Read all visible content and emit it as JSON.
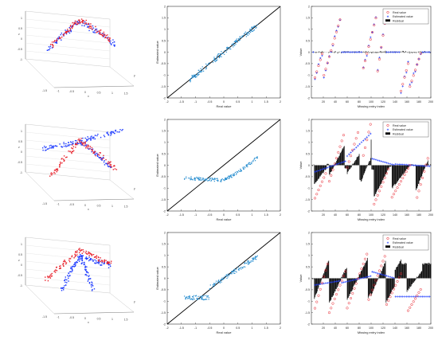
{
  "chart_data": [
    {
      "type": "scatter3d",
      "panel": "row1-3d",
      "xlabel": "x",
      "ylabel": "y",
      "zlabel": "z",
      "xticks": [
        "-1.5",
        "-1",
        "-0.5",
        "0",
        "0.5",
        "1",
        "1.5"
      ],
      "zticks": [
        "-1",
        "-0.5",
        "0",
        "0.5",
        "1"
      ],
      "series": [
        {
          "color": "#1e3cff",
          "marker": "dot",
          "arms": [
            {
              "from": [
                -1.05,
                -0.35
              ],
              "to": [
                0,
                0.75
              ]
            },
            {
              "from": [
                0,
                0.75
              ],
              "to": [
                1.2,
                -0.2
              ]
            }
          ]
        },
        {
          "color": "#e8202a",
          "marker": "dot",
          "arms": [
            {
              "from": [
                -0.95,
                -0.25
              ],
              "to": [
                0,
                0.8
              ]
            },
            {
              "from": [
                0,
                0.8
              ],
              "to": [
                1.05,
                0.0
              ]
            }
          ]
        }
      ]
    },
    {
      "type": "scatter",
      "panel": "row1-scatter",
      "xlabel": "Real value",
      "ylabel": "Estimated value",
      "xlim": [
        -2,
        2
      ],
      "ylim": [
        -2,
        2
      ],
      "xticks": [
        "-2",
        "-1.5",
        "-1",
        "-0.5",
        "0",
        "0.5",
        "1",
        "1.5",
        "2"
      ],
      "yticks": [
        "-2",
        "-1.5",
        "-1",
        "-0.5",
        "0",
        "0.5",
        "1",
        "1.5",
        "2"
      ],
      "identity_line": true,
      "color": "#2a8fd0",
      "trend": {
        "xrange": [
          -1.2,
          1.2
        ],
        "fn": "identity",
        "spread": 0.12
      }
    },
    {
      "type": "line",
      "panel": "row1-series",
      "xlabel": "Missing entry index",
      "ylabel": "Value",
      "xlim": [
        0,
        200
      ],
      "ylim": [
        -2,
        2
      ],
      "xticks": [
        "20",
        "40",
        "60",
        "80",
        "100",
        "120",
        "140",
        "160",
        "180",
        "200"
      ],
      "yticks": [
        "-2",
        "-1.5",
        "-1",
        "-0.5",
        "0",
        "0.5",
        "1",
        "1.5",
        "2"
      ],
      "legend": [
        "Real value",
        "Estimated value",
        "Residual"
      ],
      "legend_position": "top-right",
      "real_segments": [
        [
          5,
          20,
          -1.2,
          0.1
        ],
        [
          20,
          50,
          -1.1,
          1.6
        ],
        [
          85,
          110,
          -0.9,
          1.7
        ],
        [
          110,
          125,
          -1.0,
          1.6
        ],
        [
          150,
          165,
          -1.7,
          -0.2
        ],
        [
          165,
          185,
          -1.5,
          0.1
        ]
      ],
      "residual_scale": 0.25
    },
    {
      "type": "scatter3d",
      "panel": "row2-3d",
      "xlabel": "x",
      "ylabel": "y",
      "zlabel": "z",
      "xticks": [
        "-1.5",
        "-1",
        "-0.5",
        "0",
        "0.5",
        "1",
        "1.5"
      ],
      "zticks": [
        "-1",
        "-0.5",
        "0",
        "0.5",
        "1"
      ],
      "series": [
        {
          "color": "#1e3cff",
          "marker": "dot",
          "arms": [
            {
              "from": [
                -1.2,
                0.15
              ],
              "to": [
                0,
                0.45
              ]
            },
            {
              "from": [
                0,
                0.45
              ],
              "to": [
                1.4,
                0.9
              ]
            },
            {
              "from": [
                0,
                0.45
              ],
              "to": [
                1.0,
                -0.5
              ]
            }
          ]
        },
        {
          "color": "#e8202a",
          "marker": "dot",
          "arms": [
            {
              "from": [
                -0.95,
                -0.9
              ],
              "to": [
                0,
                0.5
              ]
            },
            {
              "from": [
                0,
                0.5
              ],
              "to": [
                1.2,
                -0.6
              ]
            }
          ]
        }
      ]
    },
    {
      "type": "scatter",
      "panel": "row2-scatter",
      "xlabel": "Real value",
      "ylabel": "Estimated value",
      "xlim": [
        -2,
        2
      ],
      "ylim": [
        -2,
        2
      ],
      "xticks": [
        "-2",
        "-1.5",
        "-1",
        "-0.5",
        "0",
        "0.5",
        "1",
        "1.5",
        "2"
      ],
      "yticks": [
        "-2",
        "-1.5",
        "-1",
        "-0.5",
        "0",
        "0.5",
        "1",
        "1.5",
        "2"
      ],
      "identity_line": true,
      "color": "#2a8fd0",
      "trend": {
        "xrange": [
          -1.4,
          1.2
        ],
        "fn": "flat_then_rise",
        "spread": 0.07
      }
    },
    {
      "type": "line",
      "panel": "row2-series",
      "xlabel": "Missing entry index",
      "ylabel": "Value",
      "xlim": [
        0,
        200
      ],
      "ylim": [
        -2,
        2
      ],
      "xticks": [
        "20",
        "40",
        "60",
        "80",
        "100",
        "120",
        "140",
        "160",
        "180",
        "200"
      ],
      "yticks": [
        "-2",
        "-1.5",
        "-1",
        "-0.5",
        "0",
        "0.5",
        "1",
        "1.5",
        "2"
      ],
      "legend": [
        "Real value",
        "Estimated value",
        "Residual"
      ],
      "legend_position": "top-right",
      "real_segments": [
        [
          5,
          25,
          -1.5,
          -0.3
        ],
        [
          30,
          55,
          -0.7,
          1.4
        ],
        [
          60,
          80,
          -0.1,
          1.6
        ],
        [
          85,
          100,
          0.2,
          1.9
        ],
        [
          105,
          130,
          -1.7,
          -0.1
        ],
        [
          135,
          165,
          -1.4,
          0.0
        ],
        [
          175,
          195,
          -1.6,
          0.3
        ]
      ],
      "est_segments": [
        [
          5,
          60,
          -0.3,
          0.2
        ],
        [
          60,
          100,
          0.4,
          1.4
        ],
        [
          100,
          140,
          0.3,
          0.0
        ],
        [
          140,
          200,
          0.05,
          -0.05
        ]
      ],
      "residual_scale": 0.7
    },
    {
      "type": "scatter3d",
      "panel": "row3-3d",
      "xlabel": "x",
      "ylabel": "y",
      "zlabel": "z",
      "xticks": [
        "-1.5",
        "-1",
        "-0.5",
        "0",
        "0.5",
        "1",
        "1.5"
      ],
      "zticks": [
        "-1",
        "-0.5",
        "0",
        "0.5",
        "1"
      ],
      "series": [
        {
          "color": "#1e3cff",
          "marker": "dot",
          "arms": [
            {
              "from": [
                -0.6,
                -0.9
              ],
              "to": [
                0,
                0.4
              ]
            },
            {
              "from": [
                0,
                0.4
              ],
              "to": [
                1.0,
                0.0
              ]
            },
            {
              "from": [
                0,
                0.4
              ],
              "to": [
                0.5,
                -1.0
              ]
            }
          ]
        },
        {
          "color": "#e8202a",
          "marker": "dot",
          "arms": [
            {
              "from": [
                -1.1,
                -0.5
              ],
              "to": [
                0,
                0.6
              ]
            },
            {
              "from": [
                0,
                0.6
              ],
              "to": [
                1.0,
                0.1
              ]
            }
          ]
        }
      ]
    },
    {
      "type": "scatter",
      "panel": "row3-scatter",
      "xlabel": "Real value",
      "ylabel": "Estimated value",
      "xlim": [
        -2,
        2
      ],
      "ylim": [
        -2,
        2
      ],
      "xticks": [
        "-2",
        "-1.5",
        "-1",
        "-0.5",
        "0",
        "0.5",
        "1",
        "1.5",
        "2"
      ],
      "yticks": [
        "-2",
        "-1.5",
        "-1",
        "-0.5",
        "0",
        "0.5",
        "1",
        "1.5",
        "2"
      ],
      "identity_line": true,
      "color": "#2a8fd0",
      "trend": {
        "xrange": [
          -1.4,
          1.2
        ],
        "fn": "step_rise",
        "spread": 0.1
      }
    },
    {
      "type": "line",
      "panel": "row3-series",
      "xlabel": "Missing entry index",
      "ylabel": "Value",
      "xlim": [
        0,
        200
      ],
      "ylim": [
        -2,
        2
      ],
      "xticks": [
        "20",
        "40",
        "60",
        "80",
        "100",
        "120",
        "140",
        "160",
        "180",
        "200"
      ],
      "yticks": [
        "-2",
        "-1.5",
        "-1",
        "-0.5",
        "0",
        "0.5",
        "1",
        "1.5",
        "2"
      ],
      "legend": [
        "Real value",
        "Estimated value",
        "Residual"
      ],
      "legend_position": "top-right",
      "real_segments": [
        [
          5,
          30,
          -1.4,
          0.9
        ],
        [
          30,
          60,
          -1.5,
          0.5
        ],
        [
          60,
          95,
          -1.3,
          1.2
        ],
        [
          95,
          125,
          -1.0,
          1.1
        ],
        [
          125,
          150,
          -1.2,
          0.2
        ],
        [
          160,
          185,
          -1.5,
          -0.4
        ]
      ],
      "est_segments": [
        [
          5,
          50,
          -0.3,
          -0.1
        ],
        [
          50,
          100,
          -0.2,
          0.1
        ],
        [
          100,
          140,
          0.3,
          0.0
        ],
        [
          140,
          200,
          -0.8,
          -0.8
        ]
      ],
      "residual_scale": 0.8
    }
  ]
}
